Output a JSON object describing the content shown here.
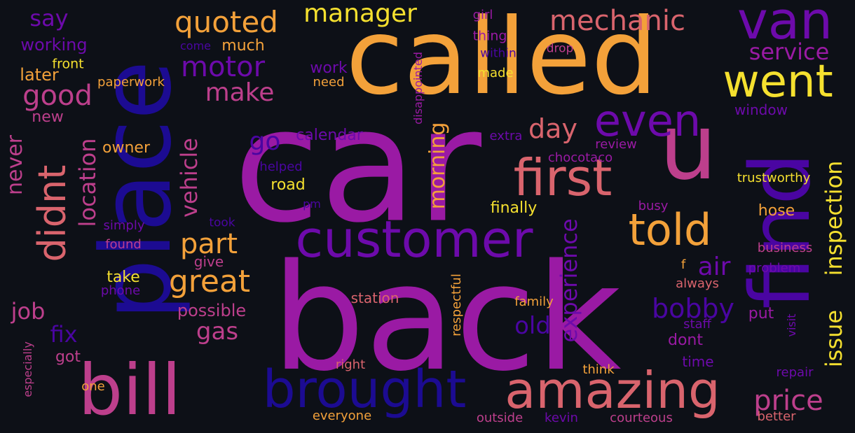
{
  "colors": {
    "background": "#0d1017",
    "yellow": "#f5e02f",
    "orange": "#f3a13a",
    "salmon": "#d9646d",
    "pink": "#bd3f8c",
    "magenta": "#9a1aa4",
    "purple": "#6d0aab",
    "violet": "#4a05a2",
    "navy": "#1c0b92"
  },
  "words": [
    {
      "text": "car",
      "color": "magenta"
    },
    {
      "text": "called",
      "color": "orange"
    },
    {
      "text": "back",
      "color": "magenta"
    },
    {
      "text": "place",
      "color": "navy"
    },
    {
      "text": "u",
      "color": "pink"
    },
    {
      "text": "find",
      "color": "violet"
    },
    {
      "text": "bill",
      "color": "pink"
    },
    {
      "text": "customer",
      "color": "purple"
    },
    {
      "text": "brought",
      "color": "navy"
    },
    {
      "text": "amazing",
      "color": "salmon"
    },
    {
      "text": "first",
      "color": "salmon"
    },
    {
      "text": "van",
      "color": "purple"
    },
    {
      "text": "went",
      "color": "yellow"
    },
    {
      "text": "even",
      "color": "purple"
    },
    {
      "text": "told",
      "color": "orange"
    },
    {
      "text": "didnt",
      "color": "salmon"
    },
    {
      "text": "mechanic",
      "color": "salmon"
    },
    {
      "text": "quoted",
      "color": "orange"
    },
    {
      "text": "manager",
      "color": "yellow"
    },
    {
      "text": "motor",
      "color": "purple"
    },
    {
      "text": "make",
      "color": "pink"
    },
    {
      "text": "good",
      "color": "pink"
    },
    {
      "text": "great",
      "color": "orange"
    },
    {
      "text": "part",
      "color": "orange"
    },
    {
      "text": "price",
      "color": "pink"
    },
    {
      "text": "bobby",
      "color": "violet"
    },
    {
      "text": "issue",
      "color": "yellow"
    },
    {
      "text": "inspection",
      "color": "yellow"
    },
    {
      "text": "service",
      "color": "magenta"
    },
    {
      "text": "day",
      "color": "salmon"
    },
    {
      "text": "air",
      "color": "purple"
    },
    {
      "text": "experience",
      "color": "purple"
    },
    {
      "text": "old",
      "color": "violet"
    },
    {
      "text": "gas",
      "color": "pink"
    },
    {
      "text": "go",
      "color": "violet"
    },
    {
      "text": "location",
      "color": "pink"
    },
    {
      "text": "vehicle",
      "color": "pink"
    },
    {
      "text": "morning",
      "color": "orange"
    },
    {
      "text": "job",
      "color": "pink"
    },
    {
      "text": "fix",
      "color": "violet"
    },
    {
      "text": "never",
      "color": "pink"
    },
    {
      "text": "say",
      "color": "purple"
    },
    {
      "text": "working",
      "color": "purple"
    },
    {
      "text": "later",
      "color": "orange"
    },
    {
      "text": "front",
      "color": "yellow"
    },
    {
      "text": "new",
      "color": "pink"
    },
    {
      "text": "paperwork",
      "color": "orange"
    },
    {
      "text": "much",
      "color": "orange"
    },
    {
      "text": "come",
      "color": "violet"
    },
    {
      "text": "work",
      "color": "purple"
    },
    {
      "text": "need",
      "color": "orange"
    },
    {
      "text": "calendar",
      "color": "purple"
    },
    {
      "text": "owner",
      "color": "orange"
    },
    {
      "text": "helped",
      "color": "violet"
    },
    {
      "text": "road",
      "color": "yellow"
    },
    {
      "text": "pm",
      "color": "violet"
    },
    {
      "text": "took",
      "color": "violet"
    },
    {
      "text": "simply",
      "color": "purple"
    },
    {
      "text": "found",
      "color": "pink"
    },
    {
      "text": "give",
      "color": "pink"
    },
    {
      "text": "possible",
      "color": "pink"
    },
    {
      "text": "take",
      "color": "yellow"
    },
    {
      "text": "phone",
      "color": "purple"
    },
    {
      "text": "got",
      "color": "pink"
    },
    {
      "text": "especially",
      "color": "pink"
    },
    {
      "text": "one",
      "color": "orange"
    },
    {
      "text": "right",
      "color": "salmon"
    },
    {
      "text": "everyone",
      "color": "orange"
    },
    {
      "text": "station",
      "color": "salmon"
    },
    {
      "text": "respectful",
      "color": "orange"
    },
    {
      "text": "girl",
      "color": "magenta"
    },
    {
      "text": "thing",
      "color": "magenta"
    },
    {
      "text": "within",
      "color": "violet"
    },
    {
      "text": "drop",
      "color": "pink"
    },
    {
      "text": "made",
      "color": "yellow"
    },
    {
      "text": "disappointed",
      "color": "magenta"
    },
    {
      "text": "extra",
      "color": "purple"
    },
    {
      "text": "chocotaco",
      "color": "magenta"
    },
    {
      "text": "review",
      "color": "magenta"
    },
    {
      "text": "window",
      "color": "purple"
    },
    {
      "text": "trustworthy",
      "color": "yellow"
    },
    {
      "text": "finally",
      "color": "yellow"
    },
    {
      "text": "busy",
      "color": "magenta"
    },
    {
      "text": "hose",
      "color": "orange"
    },
    {
      "text": "business",
      "color": "pink"
    },
    {
      "text": "problem",
      "color": "purple"
    },
    {
      "text": "f",
      "color": "orange"
    },
    {
      "text": "always",
      "color": "salmon"
    },
    {
      "text": "family",
      "color": "orange"
    },
    {
      "text": "put",
      "color": "magenta"
    },
    {
      "text": "visit",
      "color": "purple"
    },
    {
      "text": "staff",
      "color": "purple"
    },
    {
      "text": "dont",
      "color": "magenta"
    },
    {
      "text": "time",
      "color": "purple"
    },
    {
      "text": "repair",
      "color": "purple"
    },
    {
      "text": "think",
      "color": "orange"
    },
    {
      "text": "outside",
      "color": "pink"
    },
    {
      "text": "kevin",
      "color": "purple"
    },
    {
      "text": "courteous",
      "color": "pink"
    },
    {
      "text": "better",
      "color": "salmon"
    }
  ]
}
